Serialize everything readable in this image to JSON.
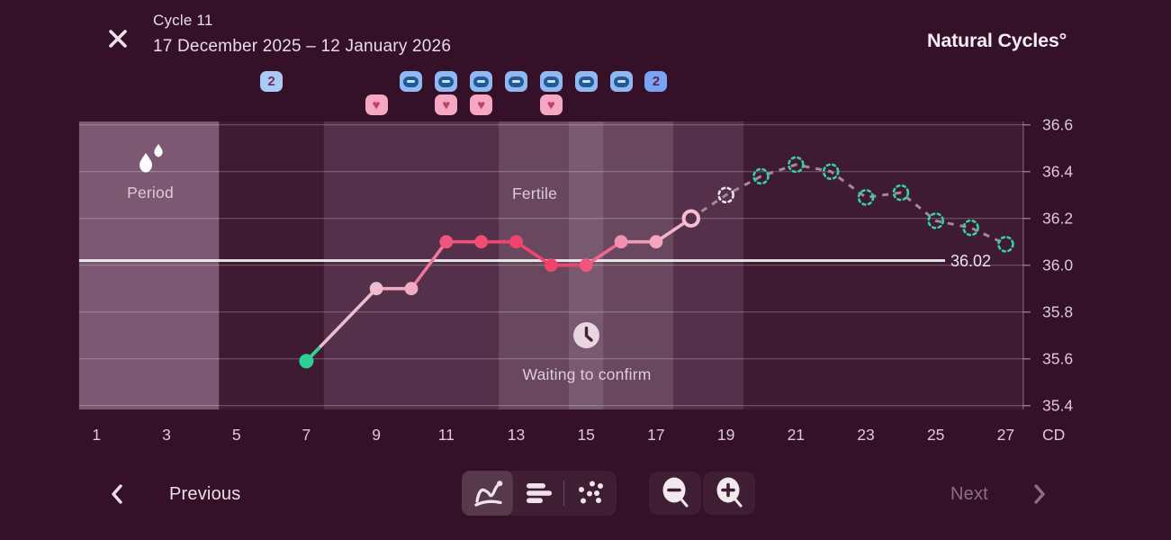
{
  "header": {
    "cycle_title": "Cycle 11",
    "date_range": "17 December 2025 – 12 January 2026",
    "logo": "Natural Cycles°"
  },
  "day_events": {
    "count_badges": [
      {
        "day": 6,
        "label": "2",
        "bg": "#a9c9f6",
        "fg": "#7b2955"
      },
      {
        "day": 17,
        "label": "2",
        "bg": "#79a4f3",
        "fg": "#5e2347"
      }
    ],
    "minus_badge_days": [
      10,
      11,
      12,
      13,
      14,
      15,
      16
    ],
    "minus_badge_colors": {
      "bg": "#90b9f3",
      "oval": "#235a96",
      "dash": "#cfe4fb"
    },
    "heart_badge_days": [
      9,
      11,
      12,
      14
    ],
    "heart_badge_colors": {
      "bg": "#f6a8c2",
      "glyph": "#c2426c"
    }
  },
  "chart_data": {
    "type": "line",
    "xlabel": "CD",
    "x_ticks": [
      1,
      3,
      5,
      7,
      9,
      11,
      13,
      15,
      17,
      19,
      21,
      23,
      25,
      27
    ],
    "y_ticks": [
      36.6,
      36.4,
      36.2,
      36.0,
      35.8,
      35.6,
      35.4
    ],
    "y_tick_labels": [
      "36.6",
      "36.4",
      "36.2",
      "36.0",
      "35.8",
      "35.6",
      "35.4"
    ],
    "ylim": [
      35.4,
      36.6
    ],
    "xlim_days": [
      0.5,
      27.5
    ],
    "grid": true,
    "legend": false,
    "coverline": {
      "value": 36.02,
      "label": "36.02"
    },
    "annotations": {
      "period": "Period",
      "fertile": "Fertile",
      "waiting": "Waiting to confirm"
    },
    "regions": [
      {
        "name": "period",
        "from_day": 0.5,
        "to_day": 4.5,
        "color": "#7c5873"
      },
      {
        "name": "fertile-light-a",
        "from_day": 7.5,
        "to_day": 12.5,
        "color": "#54304a"
      },
      {
        "name": "fertile-med-a",
        "from_day": 12.5,
        "to_day": 14.5,
        "color": "#68475f"
      },
      {
        "name": "fertile-peak",
        "from_day": 14.5,
        "to_day": 15.5,
        "color": "#79596f"
      },
      {
        "name": "fertile-med-b",
        "from_day": 15.5,
        "to_day": 17.5,
        "color": "#68475f"
      },
      {
        "name": "fertile-light-b",
        "from_day": 17.5,
        "to_day": 19.5,
        "color": "#54304a"
      }
    ],
    "measured_series": {
      "name": "measured temperature",
      "points": [
        {
          "day": 7,
          "temp": 35.59,
          "dot_color": "#2dd193",
          "line_color": null
        },
        {
          "day": 9,
          "temp": 35.9,
          "dot_color": "#f1bdce",
          "line_color": "#eebccd"
        },
        {
          "day": 10,
          "temp": 35.9,
          "dot_color": "#f2abc3",
          "line_color": "#f0aac2"
        },
        {
          "day": 11,
          "temp": 36.1,
          "dot_color": "#f2557c",
          "line_color": "#f2769b"
        },
        {
          "day": 12,
          "temp": 36.1,
          "dot_color": "#f24c74",
          "line_color": "#f2527a"
        },
        {
          "day": 13,
          "temp": 36.1,
          "dot_color": "#f1436b",
          "line_color": "#f1476e"
        },
        {
          "day": 14,
          "temp": 36.0,
          "dot_color": "#f1436b",
          "line_color": "#f1436b"
        },
        {
          "day": 15,
          "temp": 36.0,
          "dot_color": "#f2547b",
          "line_color": "#f1436b"
        },
        {
          "day": 16,
          "temp": 36.1,
          "dot_color": "#f58fb0",
          "line_color": "#f3678d"
        },
        {
          "day": 17,
          "temp": 36.1,
          "dot_color": "#f5a5be",
          "line_color": "#f59ab6"
        },
        {
          "day": 18,
          "temp": 36.2,
          "dot_color": "#f7bdd1",
          "line_color": "#f6b2c8",
          "open": true
        }
      ]
    },
    "predicted_series": {
      "name": "predicted temperature",
      "points": [
        {
          "day": 19,
          "temp": 36.3,
          "ring": "#efe5ed"
        },
        {
          "day": 20,
          "temp": 36.38,
          "ring": "#35d19e"
        },
        {
          "day": 21,
          "temp": 36.43,
          "ring": "#35d19e"
        },
        {
          "day": 22,
          "temp": 36.4,
          "ring": "#35d19e"
        },
        {
          "day": 23,
          "temp": 36.29,
          "ring": "#35d19e"
        },
        {
          "day": 24,
          "temp": 36.31,
          "ring": "#35d19e"
        },
        {
          "day": 25,
          "temp": 36.19,
          "ring": "#35d19e"
        },
        {
          "day": 26,
          "temp": 36.16,
          "ring": "#35d19e"
        },
        {
          "day": 27,
          "temp": 36.09,
          "ring": "#35d19e"
        }
      ]
    },
    "colors": {
      "base_band": "#3f1b33",
      "gridline": "rgba(255,255,255,0.26)",
      "axis_line": "rgba(255,255,255,0.32)",
      "tick": "rgba(255,255,255,0.45)",
      "coverline": "rgba(255,255,255,0.85)",
      "coverline_text": "#eee3ea",
      "axis_text": "#dccbd7",
      "predicted_line": "#a3899b",
      "open_dot_fill": "#54304a"
    }
  },
  "toolbar": {
    "previous_label": "Previous",
    "next_label": "Next"
  }
}
